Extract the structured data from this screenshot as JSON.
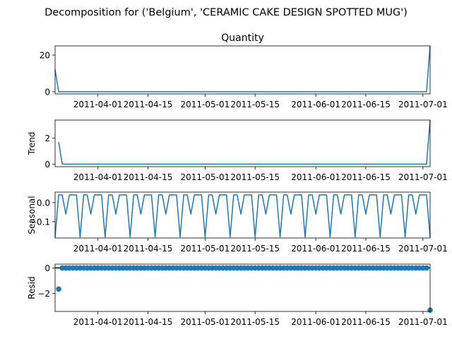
{
  "figure": {
    "suptitle": "Decomposition for ('Belgium', 'CERAMIC CAKE DESIGN SPOTTED MUG')"
  },
  "style": {
    "line_color": "#1f77b4",
    "axis_color": "#000000",
    "background": "#ffffff"
  },
  "x_tick_labels": [
    "2011-04-01",
    "2011-04-15",
    "2011-05-01",
    "2011-05-15",
    "2011-06-01",
    "2011-06-15",
    "2011-07-01"
  ],
  "chart_data": [
    {
      "type": "line",
      "title": "Quantity",
      "ylabel": "",
      "x_range": [
        "2011-03-20",
        "2011-07-03"
      ],
      "ylim": [
        -1.2,
        25
      ],
      "yticks": [
        0,
        20
      ],
      "yticklabels": [
        "0",
        "20"
      ],
      "x": [
        "2011-03-20",
        "2011-03-21",
        "2011-07-02",
        "2011-07-03"
      ],
      "values": [
        12,
        0,
        0,
        25
      ]
    },
    {
      "type": "line",
      "title": "",
      "ylabel": "Trend",
      "x_range": [
        "2011-03-20",
        "2011-07-03"
      ],
      "ylim": [
        -0.2,
        3.4
      ],
      "yticks": [
        0,
        2
      ],
      "yticklabels": [
        "0",
        "2"
      ],
      "x": [
        "2011-03-21",
        "2011-03-22",
        "2011-07-02",
        "2011-07-03"
      ],
      "values": [
        1.7,
        0,
        0,
        3.4
      ]
    },
    {
      "type": "line",
      "title": "",
      "ylabel": "Seasonal",
      "x_range": [
        "2011-03-20",
        "2011-07-03"
      ],
      "ylim": [
        -0.185,
        0.055
      ],
      "yticks": [
        0,
        -0.1
      ],
      "yticklabels": [
        "0.0",
        "−0.1"
      ],
      "period_pattern": [
        -0.18,
        0.04,
        0.04,
        -0.06,
        0.04,
        0.04,
        0.04
      ],
      "pattern_start": "2011-03-20"
    },
    {
      "type": "scatter",
      "title": "",
      "ylabel": "Resid",
      "x_range": [
        "2011-03-20",
        "2011-07-03"
      ],
      "ylim": [
        -3.4,
        0.3
      ],
      "yticks": [
        0,
        -2
      ],
      "yticklabels": [
        "0",
        "−2"
      ],
      "baseline": 0,
      "outliers": [
        {
          "x": "2011-03-21",
          "y": -1.65
        },
        {
          "x": "2011-07-03",
          "y": -3.3
        }
      ],
      "points_start": "2011-03-22",
      "points_end": "2011-07-02",
      "points_value": 0
    }
  ]
}
